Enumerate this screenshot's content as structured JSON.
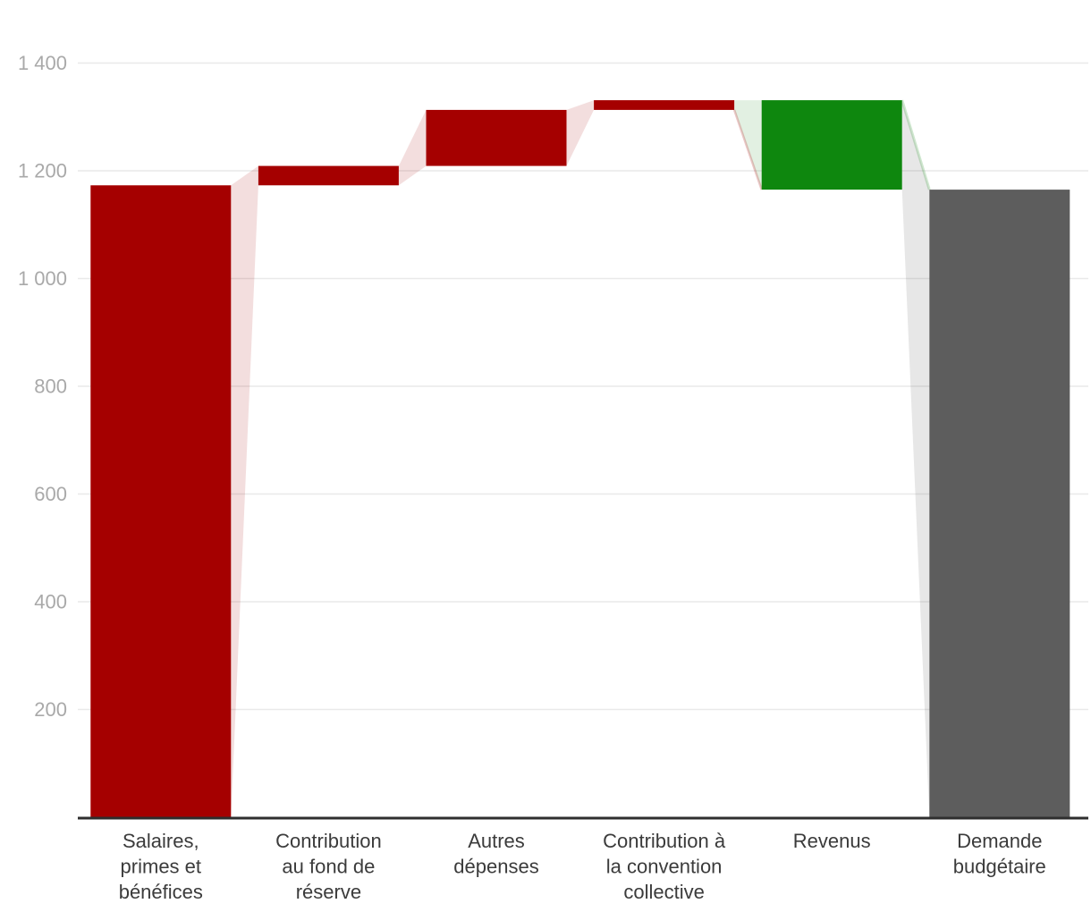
{
  "chart_data": {
    "type": "waterfall",
    "title": "",
    "xlabel": "",
    "ylabel": "",
    "y_axis": {
      "range": [
        0,
        1450
      ],
      "grid": true,
      "ticks": [
        {
          "value": 200,
          "label": "200"
        },
        {
          "value": 400,
          "label": "400"
        },
        {
          "value": 600,
          "label": "600"
        },
        {
          "value": 800,
          "label": "800"
        },
        {
          "value": 1000,
          "label": "1 000"
        },
        {
          "value": 1200,
          "label": "1 200"
        },
        {
          "value": 1400,
          "label": "1 400"
        }
      ]
    },
    "series": [
      {
        "label": "Salaires, primes et bénéfices",
        "label_lines": [
          "Salaires,",
          "primes et",
          "bénéfices"
        ],
        "value": 1173,
        "segment": "increase",
        "start": 0,
        "end": 1173
      },
      {
        "label": "Contribution au fond de réserve",
        "label_lines": [
          "Contribution",
          "au fond de",
          "réserve"
        ],
        "value": 36,
        "segment": "increase",
        "start": 1173,
        "end": 1209
      },
      {
        "label": "Autres dépenses",
        "label_lines": [
          "Autres",
          "dépenses"
        ],
        "value": 104,
        "segment": "increase",
        "start": 1209,
        "end": 1313
      },
      {
        "label": "Contribution à la convention collective",
        "label_lines": [
          "Contribution à",
          "la convention",
          "collective"
        ],
        "value": 18,
        "segment": "increase",
        "start": 1313,
        "end": 1331
      },
      {
        "label": "Revenus",
        "label_lines": [
          "Revenus"
        ],
        "value": -166,
        "segment": "decrease",
        "start": 1331,
        "end": 1165
      },
      {
        "label": "Demande budgétaire",
        "label_lines": [
          "Demande",
          "budgétaire"
        ],
        "value": 1165,
        "segment": "total",
        "start": 0,
        "end": 1165
      }
    ],
    "colors": {
      "increase": "#a50000",
      "decrease": "#0e870e",
      "total": "#5d5d5d",
      "connector_increase": "rgba(165,0,0,0.13)",
      "connector_decrease": "rgba(14,135,14,0.12)",
      "connector_total": "rgba(93,93,93,0.15)",
      "edge_increase": "rgba(165,0,0,0.22)",
      "edge_decrease": "rgba(14,135,14,0.20)",
      "grid": "#e9e9e9",
      "axis_line": "#2e2e2e",
      "tick_text": "#a9a9a9",
      "category_text": "#3b3b3b"
    },
    "legend": null
  }
}
